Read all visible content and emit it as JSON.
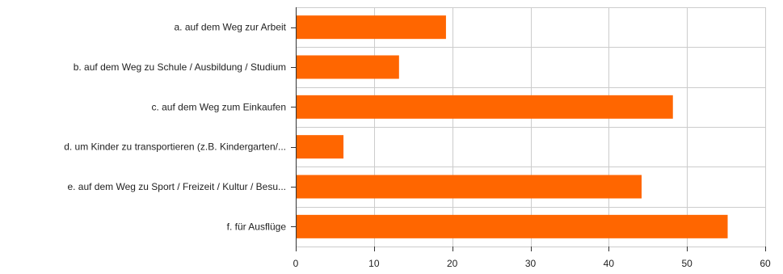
{
  "chart_data": {
    "type": "bar",
    "orientation": "horizontal",
    "categories": [
      "a. auf dem Weg zur Arbeit",
      "b. auf dem Weg zu Schule / Ausbildung / Studium",
      "c. auf dem Weg zum Einkaufen",
      "d. um Kinder zu transportieren (z.B. Kindergarten/...",
      "e. auf dem Weg zu Sport / Freizeit / Kultur / Besu...",
      "f. für Ausflüge"
    ],
    "values": [
      19.2,
      13.2,
      48.2,
      6.1,
      44.2,
      55.2
    ],
    "xlim": [
      0,
      60
    ],
    "xticks": [
      0,
      10,
      20,
      30,
      40,
      50,
      60
    ],
    "grid": true,
    "title": "",
    "xlabel": "",
    "ylabel": "",
    "colors": {
      "bar": "#ff6600",
      "grid": "#cccccc",
      "axis": "#333333"
    }
  }
}
